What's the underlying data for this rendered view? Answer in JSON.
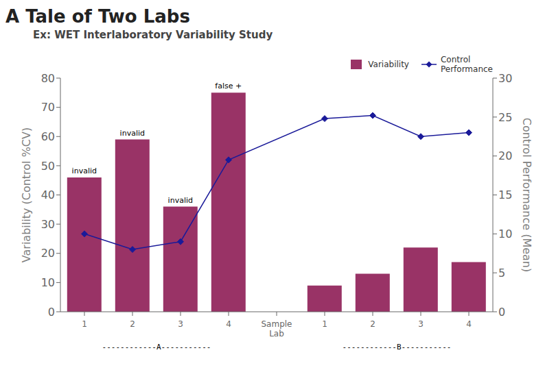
{
  "chart_data": {
    "type": "bar",
    "title": "A Tale of Two Labs",
    "subtitle": "Ex: WET Interlaboratory Variability Study",
    "categories": [
      "1",
      "2",
      "3",
      "4",
      "Sample\nLab",
      "1",
      "2",
      "3",
      "4"
    ],
    "series": [
      {
        "name": "Variability",
        "type": "bar",
        "color": "#993366",
        "values": [
          46,
          59,
          36,
          75,
          null,
          9,
          13,
          22,
          17
        ]
      },
      {
        "name": "Control\nPerformance",
        "type": "line",
        "axis": "y2",
        "color": "#1A1A99",
        "marker": "diamond",
        "values": [
          10,
          8,
          9,
          19.5,
          null,
          24.8,
          25.2,
          22.5,
          23
        ]
      }
    ],
    "y_label": "Variability (Control %CV)",
    "y2_label": "Control Performance (Mean)",
    "ylim": [
      0,
      80
    ],
    "yticks": [
      0,
      10,
      20,
      30,
      40,
      50,
      60,
      70,
      80
    ],
    "y2lim": [
      0,
      30
    ],
    "y2ticks": [
      0,
      5,
      10,
      15,
      20,
      25,
      30
    ],
    "annotations": [
      {
        "index": 0,
        "text": "invalid"
      },
      {
        "index": 1,
        "text": "invalid"
      },
      {
        "index": 2,
        "text": "invalid"
      },
      {
        "index": 3,
        "text": "false +"
      }
    ],
    "group_labels": [
      {
        "text": "------------A-----------",
        "from": 0,
        "to": 3
      },
      {
        "text": "------------B-----------",
        "from": 5,
        "to": 8
      }
    ],
    "legend": "upper right",
    "grid": false
  }
}
